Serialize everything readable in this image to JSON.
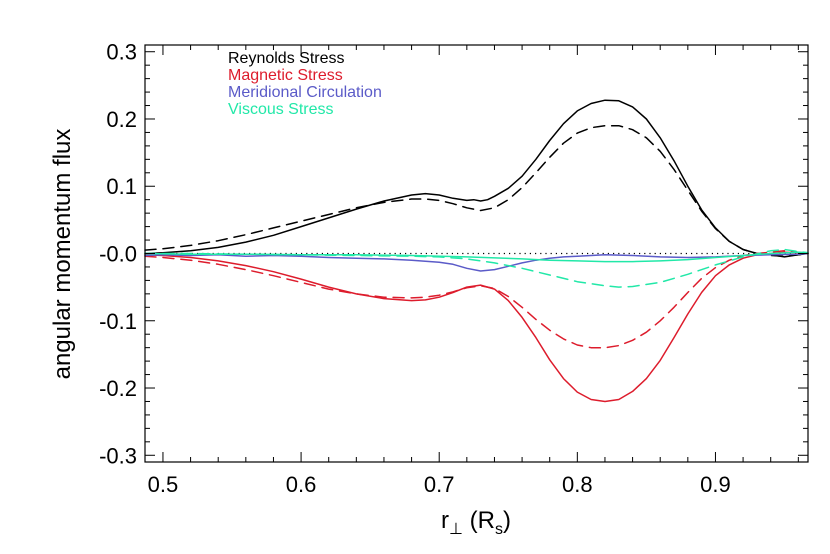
{
  "chart_data": {
    "type": "line",
    "title": "",
    "xlabel_main": "r",
    "xlabel_sub": "⊥",
    "xlabel_units_open": " (R",
    "xlabel_units_sub": "s",
    "xlabel_units_close": ")",
    "ylabel": "angular momentum flux",
    "xlim": [
      0.487,
      0.967
    ],
    "ylim": [
      -0.31,
      0.31
    ],
    "xticks": [
      0.5,
      0.6,
      0.7,
      0.8,
      0.9
    ],
    "xtick_labels": [
      "0.5",
      "0.6",
      "0.7",
      "0.8",
      "0.9"
    ],
    "yticks": [
      0.3,
      0.2,
      0.1,
      0.0,
      -0.1,
      -0.2,
      -0.3
    ],
    "ytick_labels": [
      "0.3",
      "0.2",
      "0.1",
      "-0.0",
      "-0.1",
      "-0.2",
      "-0.3"
    ],
    "legend_position": "top-left",
    "legend": [
      {
        "label": "Reynolds Stress",
        "color": "#000000"
      },
      {
        "label": "Magnetic Stress",
        "color": "#dd1c2c"
      },
      {
        "label": "Meridional Circulation",
        "color": "#5b5bc8"
      },
      {
        "label": "Viscous Stress",
        "color": "#22e8a8"
      }
    ],
    "zero_line": {
      "y": 0.0,
      "style": "dotted",
      "color": "#000000"
    },
    "series": [
      {
        "name": "Reynolds Stress (solid)",
        "color": "#000000",
        "dash": "solid",
        "points": [
          [
            0.487,
            0.0
          ],
          [
            0.5,
            0.001
          ],
          [
            0.52,
            0.004
          ],
          [
            0.54,
            0.009
          ],
          [
            0.56,
            0.017
          ],
          [
            0.58,
            0.027
          ],
          [
            0.6,
            0.04
          ],
          [
            0.62,
            0.053
          ],
          [
            0.64,
            0.066
          ],
          [
            0.66,
            0.078
          ],
          [
            0.68,
            0.087
          ],
          [
            0.69,
            0.089
          ],
          [
            0.7,
            0.087
          ],
          [
            0.71,
            0.082
          ],
          [
            0.72,
            0.079
          ],
          [
            0.725,
            0.08
          ],
          [
            0.73,
            0.078
          ],
          [
            0.735,
            0.08
          ],
          [
            0.74,
            0.085
          ],
          [
            0.75,
            0.097
          ],
          [
            0.76,
            0.115
          ],
          [
            0.77,
            0.14
          ],
          [
            0.78,
            0.168
          ],
          [
            0.79,
            0.193
          ],
          [
            0.8,
            0.212
          ],
          [
            0.81,
            0.223
          ],
          [
            0.82,
            0.228
          ],
          [
            0.83,
            0.227
          ],
          [
            0.84,
            0.218
          ],
          [
            0.85,
            0.2
          ],
          [
            0.86,
            0.172
          ],
          [
            0.87,
            0.138
          ],
          [
            0.88,
            0.1
          ],
          [
            0.89,
            0.065
          ],
          [
            0.9,
            0.038
          ],
          [
            0.91,
            0.018
          ],
          [
            0.92,
            0.006
          ],
          [
            0.93,
            0.0
          ],
          [
            0.94,
            -0.002
          ],
          [
            0.95,
            -0.005
          ],
          [
            0.96,
            -0.002
          ],
          [
            0.967,
            0.0
          ]
        ]
      },
      {
        "name": "Reynolds Stress (dashed)",
        "color": "#000000",
        "dash": "dashed",
        "points": [
          [
            0.487,
            0.005
          ],
          [
            0.5,
            0.007
          ],
          [
            0.52,
            0.012
          ],
          [
            0.54,
            0.019
          ],
          [
            0.56,
            0.028
          ],
          [
            0.58,
            0.038
          ],
          [
            0.6,
            0.048
          ],
          [
            0.62,
            0.058
          ],
          [
            0.64,
            0.068
          ],
          [
            0.66,
            0.076
          ],
          [
            0.68,
            0.081
          ],
          [
            0.69,
            0.081
          ],
          [
            0.7,
            0.079
          ],
          [
            0.71,
            0.074
          ],
          [
            0.72,
            0.068
          ],
          [
            0.73,
            0.064
          ],
          [
            0.74,
            0.068
          ],
          [
            0.75,
            0.08
          ],
          [
            0.76,
            0.098
          ],
          [
            0.77,
            0.12
          ],
          [
            0.78,
            0.143
          ],
          [
            0.79,
            0.164
          ],
          [
            0.8,
            0.179
          ],
          [
            0.81,
            0.187
          ],
          [
            0.82,
            0.19
          ],
          [
            0.83,
            0.19
          ],
          [
            0.84,
            0.184
          ],
          [
            0.85,
            0.172
          ],
          [
            0.86,
            0.152
          ],
          [
            0.87,
            0.125
          ],
          [
            0.88,
            0.094
          ],
          [
            0.89,
            0.063
          ],
          [
            0.9,
            0.037
          ],
          [
            0.91,
            0.018
          ],
          [
            0.92,
            0.006
          ],
          [
            0.93,
            0.0
          ],
          [
            0.94,
            -0.003
          ],
          [
            0.95,
            -0.004
          ],
          [
            0.96,
            -0.002
          ],
          [
            0.967,
            0.0
          ]
        ]
      },
      {
        "name": "Magnetic Stress (solid)",
        "color": "#dd1c2c",
        "dash": "solid",
        "points": [
          [
            0.487,
            -0.002
          ],
          [
            0.5,
            -0.003
          ],
          [
            0.52,
            -0.006
          ],
          [
            0.54,
            -0.011
          ],
          [
            0.56,
            -0.018
          ],
          [
            0.58,
            -0.027
          ],
          [
            0.6,
            -0.038
          ],
          [
            0.62,
            -0.05
          ],
          [
            0.64,
            -0.06
          ],
          [
            0.66,
            -0.067
          ],
          [
            0.68,
            -0.07
          ],
          [
            0.69,
            -0.069
          ],
          [
            0.7,
            -0.065
          ],
          [
            0.71,
            -0.058
          ],
          [
            0.72,
            -0.05
          ],
          [
            0.73,
            -0.047
          ],
          [
            0.74,
            -0.053
          ],
          [
            0.75,
            -0.07
          ],
          [
            0.76,
            -0.095
          ],
          [
            0.77,
            -0.125
          ],
          [
            0.78,
            -0.158
          ],
          [
            0.79,
            -0.186
          ],
          [
            0.8,
            -0.206
          ],
          [
            0.81,
            -0.217
          ],
          [
            0.82,
            -0.22
          ],
          [
            0.83,
            -0.217
          ],
          [
            0.84,
            -0.205
          ],
          [
            0.85,
            -0.186
          ],
          [
            0.86,
            -0.159
          ],
          [
            0.87,
            -0.125
          ],
          [
            0.88,
            -0.09
          ],
          [
            0.89,
            -0.058
          ],
          [
            0.9,
            -0.033
          ],
          [
            0.91,
            -0.017
          ],
          [
            0.92,
            -0.007
          ],
          [
            0.93,
            -0.002
          ],
          [
            0.94,
            0.0
          ],
          [
            0.95,
            0.002
          ],
          [
            0.96,
            0.001
          ],
          [
            0.967,
            0.0
          ]
        ]
      },
      {
        "name": "Magnetic Stress (dashed)",
        "color": "#dd1c2c",
        "dash": "dashed",
        "points": [
          [
            0.487,
            -0.004
          ],
          [
            0.5,
            -0.006
          ],
          [
            0.52,
            -0.01
          ],
          [
            0.54,
            -0.016
          ],
          [
            0.56,
            -0.024
          ],
          [
            0.58,
            -0.033
          ],
          [
            0.6,
            -0.043
          ],
          [
            0.62,
            -0.053
          ],
          [
            0.64,
            -0.06
          ],
          [
            0.66,
            -0.065
          ],
          [
            0.68,
            -0.066
          ],
          [
            0.69,
            -0.065
          ],
          [
            0.7,
            -0.062
          ],
          [
            0.71,
            -0.057
          ],
          [
            0.72,
            -0.051
          ],
          [
            0.73,
            -0.048
          ],
          [
            0.74,
            -0.052
          ],
          [
            0.75,
            -0.064
          ],
          [
            0.76,
            -0.08
          ],
          [
            0.77,
            -0.098
          ],
          [
            0.78,
            -0.114
          ],
          [
            0.79,
            -0.127
          ],
          [
            0.8,
            -0.136
          ],
          [
            0.81,
            -0.14
          ],
          [
            0.82,
            -0.14
          ],
          [
            0.83,
            -0.137
          ],
          [
            0.84,
            -0.129
          ],
          [
            0.85,
            -0.117
          ],
          [
            0.86,
            -0.1
          ],
          [
            0.87,
            -0.08
          ],
          [
            0.88,
            -0.058
          ],
          [
            0.89,
            -0.037
          ],
          [
            0.9,
            -0.021
          ],
          [
            0.91,
            -0.01
          ],
          [
            0.92,
            -0.003
          ],
          [
            0.93,
            0.0
          ],
          [
            0.94,
            0.002
          ],
          [
            0.95,
            0.004
          ],
          [
            0.96,
            0.002
          ],
          [
            0.967,
            0.0
          ]
        ]
      },
      {
        "name": "Meridional Circulation",
        "color": "#5b5bc8",
        "dash": "solid",
        "points": [
          [
            0.487,
            -0.003
          ],
          [
            0.5,
            -0.002
          ],
          [
            0.52,
            -0.003
          ],
          [
            0.54,
            -0.002
          ],
          [
            0.56,
            -0.004
          ],
          [
            0.58,
            -0.003
          ],
          [
            0.6,
            -0.004
          ],
          [
            0.62,
            -0.006
          ],
          [
            0.64,
            -0.007
          ],
          [
            0.66,
            -0.008
          ],
          [
            0.68,
            -0.01
          ],
          [
            0.7,
            -0.013
          ],
          [
            0.71,
            -0.016
          ],
          [
            0.72,
            -0.022
          ],
          [
            0.73,
            -0.026
          ],
          [
            0.74,
            -0.024
          ],
          [
            0.75,
            -0.019
          ],
          [
            0.76,
            -0.014
          ],
          [
            0.77,
            -0.01
          ],
          [
            0.78,
            -0.007
          ],
          [
            0.79,
            -0.005
          ],
          [
            0.8,
            -0.004
          ],
          [
            0.82,
            -0.002
          ],
          [
            0.84,
            -0.003
          ],
          [
            0.86,
            -0.005
          ],
          [
            0.88,
            -0.006
          ],
          [
            0.9,
            -0.005
          ],
          [
            0.92,
            -0.003
          ],
          [
            0.94,
            -0.002
          ],
          [
            0.96,
            -0.001
          ],
          [
            0.967,
            0.0
          ]
        ]
      },
      {
        "name": "Viscous Stress (solid)",
        "color": "#22e8a8",
        "dash": "solid",
        "points": [
          [
            0.487,
            0.0
          ],
          [
            0.52,
            -0.001
          ],
          [
            0.56,
            -0.001
          ],
          [
            0.6,
            -0.002
          ],
          [
            0.64,
            -0.002
          ],
          [
            0.68,
            -0.003
          ],
          [
            0.72,
            -0.005
          ],
          [
            0.76,
            -0.008
          ],
          [
            0.78,
            -0.01
          ],
          [
            0.8,
            -0.011
          ],
          [
            0.82,
            -0.012
          ],
          [
            0.84,
            -0.012
          ],
          [
            0.86,
            -0.011
          ],
          [
            0.88,
            -0.009
          ],
          [
            0.9,
            -0.006
          ],
          [
            0.92,
            -0.003
          ],
          [
            0.94,
            0.0
          ],
          [
            0.96,
            0.002
          ],
          [
            0.967,
            0.001
          ]
        ]
      },
      {
        "name": "Viscous Stress (dashed)",
        "color": "#22e8a8",
        "dash": "dashed",
        "points": [
          [
            0.487,
            0.0
          ],
          [
            0.52,
            0.0
          ],
          [
            0.56,
            -0.001
          ],
          [
            0.6,
            -0.002
          ],
          [
            0.64,
            -0.003
          ],
          [
            0.68,
            -0.004
          ],
          [
            0.7,
            -0.005
          ],
          [
            0.72,
            -0.008
          ],
          [
            0.74,
            -0.014
          ],
          [
            0.76,
            -0.022
          ],
          [
            0.78,
            -0.032
          ],
          [
            0.8,
            -0.042
          ],
          [
            0.82,
            -0.048
          ],
          [
            0.83,
            -0.05
          ],
          [
            0.84,
            -0.049
          ],
          [
            0.86,
            -0.043
          ],
          [
            0.88,
            -0.031
          ],
          [
            0.9,
            -0.017
          ],
          [
            0.92,
            -0.005
          ],
          [
            0.94,
            0.004
          ],
          [
            0.95,
            0.006
          ],
          [
            0.96,
            0.003
          ],
          [
            0.967,
            0.001
          ]
        ]
      }
    ]
  }
}
